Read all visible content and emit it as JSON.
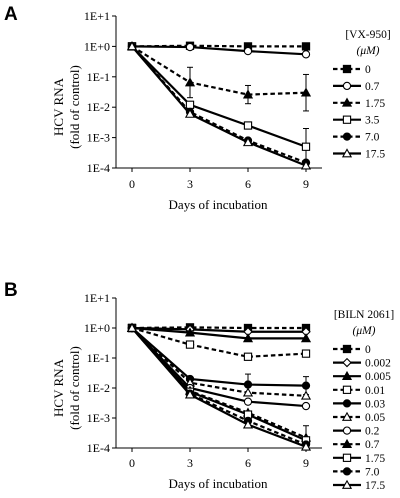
{
  "chart_data": [
    {
      "type": "line",
      "panel": "A",
      "xlabel": "Days of incubation",
      "ylabel": "HCV RNA (fold of control)",
      "ylabel_lines": [
        "HCV RNA",
        "(fold of control)"
      ],
      "yscale": "log",
      "x": [
        0,
        3,
        6,
        9
      ],
      "xticks": [
        "0",
        "3",
        "6",
        "9"
      ],
      "yticks": [
        "1E+1",
        "1E+0",
        "1E-1",
        "1E-2",
        "1E-3",
        "1E-4"
      ],
      "ylim": [
        0.0001,
        10
      ],
      "legend_title_lines": [
        "[VX-950]",
        "(μM)"
      ],
      "legend_placement": "right",
      "series": [
        {
          "name": "0",
          "values": [
            1,
            1.05,
            1.0,
            1.0
          ],
          "marker": "square-filled",
          "dashed": true
        },
        {
          "name": "0.7",
          "values": [
            1,
            0.95,
            0.7,
            0.55
          ],
          "marker": "circle-open",
          "dashed": false
        },
        {
          "name": "1.75",
          "values": [
            1,
            0.065,
            0.026,
            0.03
          ],
          "marker": "triangle-filled",
          "dashed": true,
          "err": [
            0,
            0.5,
            0.3,
            0.6
          ]
        },
        {
          "name": "3.5",
          "values": [
            1,
            0.012,
            0.0025,
            0.0005
          ],
          "marker": "square-open",
          "dashed": false,
          "err": [
            0,
            0,
            0,
            0.6
          ]
        },
        {
          "name": "7.0",
          "values": [
            1,
            0.007,
            0.0008,
            0.00015
          ],
          "marker": "circle-filled",
          "dashed": true
        },
        {
          "name": "17.5",
          "values": [
            1,
            0.006,
            0.0007,
            0.00012
          ],
          "marker": "triangle-open",
          "dashed": false
        }
      ]
    },
    {
      "type": "line",
      "panel": "B",
      "xlabel": "Days of incubation",
      "ylabel": "HCV RNA (fold of control)",
      "ylabel_lines": [
        "HCV RNA",
        "(fold of control)"
      ],
      "yscale": "log",
      "x": [
        0,
        3,
        6,
        9
      ],
      "xticks": [
        "0",
        "3",
        "6",
        "9"
      ],
      "yticks": [
        "1E+1",
        "1E+0",
        "1E-1",
        "1E-2",
        "1E-3",
        "1E-4"
      ],
      "ylim": [
        0.0001,
        10
      ],
      "legend_title_lines": [
        "[BILN 2061]",
        "(μM)"
      ],
      "legend_placement": "right",
      "series": [
        {
          "name": "0",
          "values": [
            1,
            1.05,
            1.0,
            1.0
          ],
          "marker": "square-filled",
          "dashed": true
        },
        {
          "name": "0.002",
          "values": [
            1,
            0.9,
            0.75,
            0.75
          ],
          "marker": "diamond-open",
          "dashed": false
        },
        {
          "name": "0.005",
          "values": [
            1,
            0.7,
            0.45,
            0.45
          ],
          "marker": "triangle-filled",
          "dashed": false
        },
        {
          "name": "0.01",
          "values": [
            1,
            0.28,
            0.11,
            0.14
          ],
          "marker": "square-open",
          "dashed": true
        },
        {
          "name": "0.03",
          "values": [
            1,
            0.02,
            0.013,
            0.012
          ],
          "marker": "circle-filled",
          "dashed": false,
          "err": [
            0,
            0,
            0.35,
            0.3
          ]
        },
        {
          "name": "0.05",
          "values": [
            1,
            0.015,
            0.007,
            0.0055
          ],
          "marker": "triangle-open",
          "dashed": true
        },
        {
          "name": "0.2",
          "values": [
            1,
            0.01,
            0.0035,
            0.0025
          ],
          "marker": "circle-open",
          "dashed": false
        },
        {
          "name": "0.7",
          "values": [
            1,
            0.008,
            0.0015,
            0.00022
          ],
          "marker": "triangle-filled",
          "dashed": true,
          "err": [
            0,
            0,
            0,
            0.4
          ]
        },
        {
          "name": "1.75",
          "values": [
            1,
            0.0075,
            0.0013,
            0.00018
          ],
          "marker": "square-open",
          "dashed": false
        },
        {
          "name": "7.0",
          "values": [
            1,
            0.0065,
            0.0008,
            0.00013
          ],
          "marker": "circle-filled",
          "dashed": true
        },
        {
          "name": "17.5",
          "values": [
            1,
            0.006,
            0.0006,
            0.00011
          ],
          "marker": "triangle-open",
          "dashed": false
        }
      ]
    }
  ]
}
